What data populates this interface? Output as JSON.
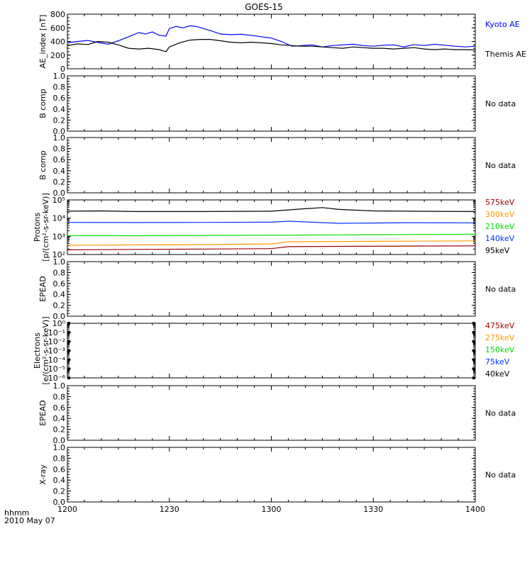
{
  "title": "GOES-15",
  "time_axis": {
    "label_top": "hhmm",
    "label_bottom": "2010 May 07",
    "ticks": [
      "1200",
      "1230",
      "1300",
      "1330",
      "1400"
    ]
  },
  "chart_data": [
    {
      "type": "line",
      "ylabel": "AE_index [nT]",
      "ylim": [
        0,
        800
      ],
      "yticks": [
        "0",
        "200",
        "400",
        "600",
        "800"
      ],
      "x_start": "12:00",
      "x_end": "14:00",
      "series": [
        {
          "name": "Kyoto AE",
          "color": "#0000ff",
          "x": [
            "12:00",
            "12:03",
            "12:06",
            "12:09",
            "12:12",
            "12:15",
            "12:18",
            "12:21",
            "12:23",
            "12:25",
            "12:27",
            "12:29",
            "12:30",
            "12:32",
            "12:34",
            "12:36",
            "12:38",
            "12:40",
            "12:42",
            "12:45",
            "12:48",
            "12:51",
            "12:54",
            "12:57",
            "13:00",
            "13:03",
            "13:06",
            "13:09",
            "13:12",
            "13:15",
            "13:18",
            "13:21",
            "13:24",
            "13:27",
            "13:30",
            "13:33",
            "13:36",
            "13:39",
            "13:42",
            "13:45",
            "13:48",
            "13:51",
            "13:54",
            "13:57",
            "14:00"
          ],
          "values": [
            380,
            400,
            415,
            385,
            360,
            410,
            470,
            530,
            510,
            540,
            490,
            480,
            590,
            620,
            600,
            630,
            620,
            590,
            560,
            510,
            500,
            505,
            490,
            470,
            450,
            400,
            330,
            340,
            350,
            320,
            340,
            350,
            360,
            340,
            330,
            345,
            350,
            320,
            355,
            340,
            360,
            345,
            330,
            320,
            330
          ]
        },
        {
          "name": "Themis AE",
          "color": "#000000",
          "x": [
            "12:00",
            "12:03",
            "12:06",
            "12:09",
            "12:12",
            "12:15",
            "12:18",
            "12:21",
            "12:24",
            "12:27",
            "12:29",
            "12:30",
            "12:33",
            "12:36",
            "12:39",
            "12:42",
            "12:45",
            "12:48",
            "12:51",
            "12:54",
            "12:57",
            "13:00",
            "13:03",
            "13:06",
            "13:09",
            "13:12",
            "13:15",
            "13:18",
            "13:21",
            "13:24",
            "13:27",
            "13:30",
            "13:33",
            "13:36",
            "13:39",
            "13:42",
            "13:45",
            "13:48",
            "13:51",
            "13:54",
            "13:57",
            "14:00"
          ],
          "values": [
            340,
            365,
            355,
            400,
            390,
            350,
            300,
            290,
            300,
            280,
            250,
            320,
            380,
            420,
            430,
            430,
            410,
            390,
            380,
            390,
            380,
            370,
            350,
            340,
            330,
            330,
            320,
            310,
            300,
            320,
            310,
            300,
            300,
            290,
            300,
            310,
            290,
            280,
            290,
            280,
            280,
            275
          ]
        }
      ]
    },
    {
      "type": "line",
      "ylabel": "B comp",
      "ylim": [
        0,
        1
      ],
      "yticks": [
        "0.0",
        "0.2",
        "0.4",
        "0.6",
        "0.8",
        "1.0"
      ],
      "status": "No data",
      "series": []
    },
    {
      "type": "line",
      "ylabel": "B comp",
      "ylim": [
        0,
        1
      ],
      "yticks": [
        "0.0",
        "0.2",
        "0.4",
        "0.6",
        "0.8",
        "1.0"
      ],
      "status": "No data",
      "series": []
    },
    {
      "type": "line",
      "ylabel": "Protons",
      "unit": "[p/(cm²-s-sr-keV)]",
      "log_scale": true,
      "ylim": [
        100,
        100000
      ],
      "yticks": [
        "10²",
        "10³",
        "10⁴",
        "10⁵"
      ],
      "series": [
        {
          "name": "575keV",
          "color": "#990000",
          "x": [
            "12:00",
            "12:20",
            "12:40",
            "13:00",
            "13:05",
            "13:20",
            "13:40",
            "14:00"
          ],
          "values": [
            180,
            190,
            200,
            210,
            270,
            280,
            290,
            300
          ]
        },
        {
          "name": "300keV",
          "color": "#ff9900",
          "x": [
            "12:00",
            "12:20",
            "12:40",
            "13:00",
            "13:05",
            "13:20",
            "13:40",
            "14:00"
          ],
          "values": [
            320,
            340,
            350,
            380,
            500,
            520,
            540,
            560
          ]
        },
        {
          "name": "210keV",
          "color": "#00dd00",
          "x": [
            "12:00",
            "12:20",
            "12:40",
            "13:00",
            "13:20",
            "13:40",
            "14:00"
          ],
          "values": [
            1100,
            1080,
            1120,
            1150,
            1200,
            1250,
            1300
          ]
        },
        {
          "name": "140keV",
          "color": "#0033ff",
          "x": [
            "12:00",
            "12:20",
            "12:40",
            "13:00",
            "13:05",
            "13:20",
            "13:40",
            "14:00"
          ],
          "values": [
            5800,
            5700,
            5800,
            6000,
            6800,
            5200,
            5600,
            5500
          ]
        },
        {
          "name": "95keV",
          "color": "#000000",
          "x": [
            "12:00",
            "12:10",
            "12:20",
            "12:40",
            "13:00",
            "13:10",
            "13:15",
            "13:20",
            "13:30",
            "13:40",
            "14:00"
          ],
          "values": [
            24000,
            25000,
            23000,
            23000,
            24000,
            33000,
            38000,
            30000,
            25000,
            24000,
            23000
          ]
        }
      ]
    },
    {
      "type": "line",
      "ylabel": "EPEAD",
      "ylim": [
        0,
        1
      ],
      "yticks": [
        "0.0",
        "0.2",
        "0.4",
        "0.6",
        "0.8",
        "1.0"
      ],
      "status": "No data",
      "series": []
    },
    {
      "type": "line",
      "ylabel": "Electrons",
      "unit": "[e/(cm²-s-sr-keV)]",
      "log_scale": true,
      "ylim": [
        1e-06,
        1
      ],
      "yticks": [
        "10⁻⁶",
        "10⁻⁵",
        "10⁻⁴",
        "10⁻³",
        "10⁻²",
        "10⁻¹",
        "10⁰"
      ],
      "series": [
        {
          "name": "475keV",
          "color": "#990000",
          "values": []
        },
        {
          "name": "275keV",
          "color": "#ff9900",
          "values": []
        },
        {
          "name": "150keV",
          "color": "#00dd00",
          "values": []
        },
        {
          "name": "75keV",
          "color": "#0033ff",
          "values": []
        },
        {
          "name": "40keV",
          "color": "#000000",
          "values": []
        }
      ]
    },
    {
      "type": "line",
      "ylabel": "EPEAD",
      "ylim": [
        0,
        1
      ],
      "yticks": [
        "0.0",
        "0.2",
        "0.4",
        "0.6",
        "0.8",
        "1.0"
      ],
      "status": "No data",
      "series": []
    },
    {
      "type": "line",
      "ylabel": "X-ray",
      "ylim": [
        0,
        1
      ],
      "yticks": [
        "0.0",
        "0.2",
        "0.4",
        "0.6",
        "0.8",
        "1.0"
      ],
      "status": "No data",
      "series": []
    }
  ]
}
